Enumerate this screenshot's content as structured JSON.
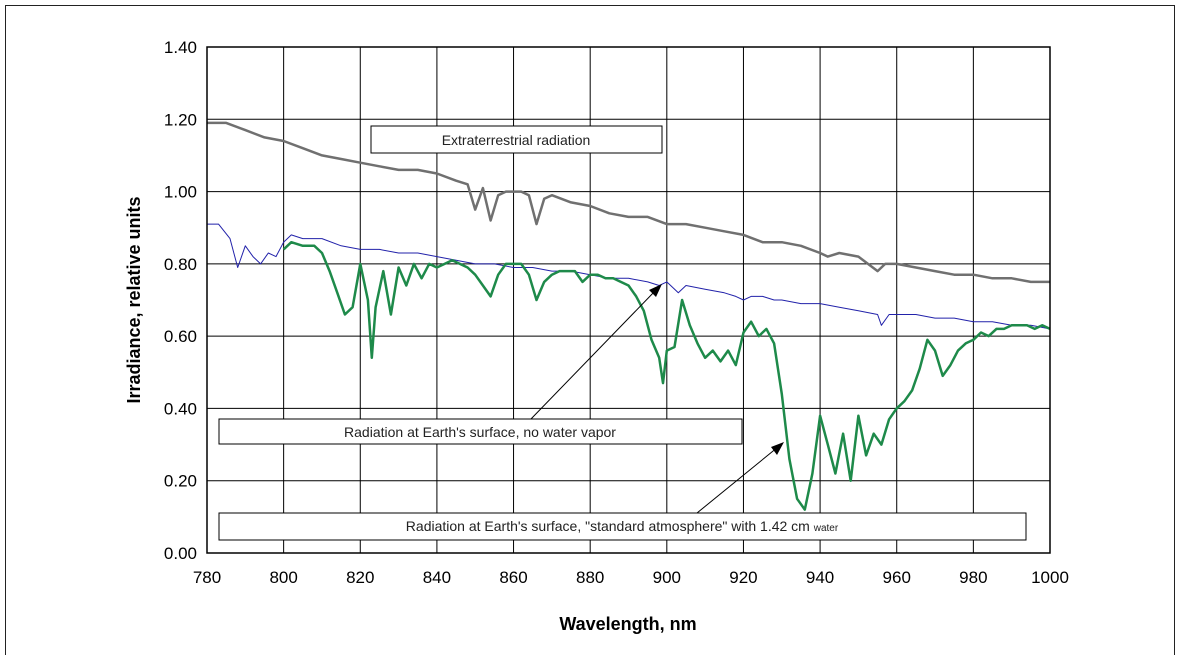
{
  "chart_data": {
    "type": "line",
    "title": "",
    "xlabel": "Wavelength, nm",
    "ylabel": "Irradiance, relative units",
    "xlim": [
      780,
      1000
    ],
    "ylim": [
      0,
      1.4
    ],
    "x_ticks": [
      "780",
      "800",
      "820",
      "840",
      "860",
      "880",
      "900",
      "920",
      "940",
      "960",
      "980",
      "1000"
    ],
    "y_ticks": [
      "0.00",
      "0.20",
      "0.40",
      "0.60",
      "0.80",
      "1.00",
      "1.20",
      "1.40"
    ],
    "grid": true,
    "series": [
      {
        "name": "Extraterrestrial radiation",
        "color": "#707070",
        "points": [
          [
            780,
            1.19
          ],
          [
            785,
            1.19
          ],
          [
            790,
            1.17
          ],
          [
            795,
            1.15
          ],
          [
            800,
            1.14
          ],
          [
            805,
            1.12
          ],
          [
            810,
            1.1
          ],
          [
            815,
            1.09
          ],
          [
            820,
            1.08
          ],
          [
            825,
            1.07
          ],
          [
            830,
            1.06
          ],
          [
            835,
            1.06
          ],
          [
            840,
            1.05
          ],
          [
            845,
            1.03
          ],
          [
            848,
            1.02
          ],
          [
            850,
            0.95
          ],
          [
            852,
            1.01
          ],
          [
            854,
            0.92
          ],
          [
            856,
            0.99
          ],
          [
            858,
            1.0
          ],
          [
            860,
            1.0
          ],
          [
            862,
            1.0
          ],
          [
            864,
            0.99
          ],
          [
            866,
            0.91
          ],
          [
            868,
            0.98
          ],
          [
            870,
            0.99
          ],
          [
            875,
            0.97
          ],
          [
            880,
            0.96
          ],
          [
            885,
            0.94
          ],
          [
            890,
            0.93
          ],
          [
            895,
            0.93
          ],
          [
            900,
            0.91
          ],
          [
            905,
            0.91
          ],
          [
            910,
            0.9
          ],
          [
            915,
            0.89
          ],
          [
            920,
            0.88
          ],
          [
            925,
            0.86
          ],
          [
            930,
            0.86
          ],
          [
            935,
            0.85
          ],
          [
            940,
            0.83
          ],
          [
            942,
            0.82
          ],
          [
            945,
            0.83
          ],
          [
            950,
            0.82
          ],
          [
            955,
            0.78
          ],
          [
            957,
            0.8
          ],
          [
            960,
            0.8
          ],
          [
            965,
            0.79
          ],
          [
            970,
            0.78
          ],
          [
            975,
            0.77
          ],
          [
            980,
            0.77
          ],
          [
            985,
            0.76
          ],
          [
            990,
            0.76
          ],
          [
            995,
            0.75
          ],
          [
            1000,
            0.75
          ]
        ]
      },
      {
        "name": "Radiation at Earth's surface, no water vapor",
        "color": "#2222aa",
        "points": [
          [
            780,
            0.91
          ],
          [
            783,
            0.91
          ],
          [
            786,
            0.87
          ],
          [
            788,
            0.79
          ],
          [
            790,
            0.85
          ],
          [
            792,
            0.82
          ],
          [
            794,
            0.8
          ],
          [
            796,
            0.83
          ],
          [
            798,
            0.82
          ],
          [
            800,
            0.86
          ],
          [
            802,
            0.88
          ],
          [
            805,
            0.87
          ],
          [
            810,
            0.87
          ],
          [
            815,
            0.85
          ],
          [
            820,
            0.84
          ],
          [
            825,
            0.84
          ],
          [
            830,
            0.83
          ],
          [
            835,
            0.83
          ],
          [
            840,
            0.82
          ],
          [
            845,
            0.81
          ],
          [
            850,
            0.8
          ],
          [
            855,
            0.8
          ],
          [
            860,
            0.79
          ],
          [
            865,
            0.79
          ],
          [
            870,
            0.78
          ],
          [
            875,
            0.78
          ],
          [
            880,
            0.77
          ],
          [
            885,
            0.76
          ],
          [
            890,
            0.76
          ],
          [
            895,
            0.75
          ],
          [
            898,
            0.74
          ],
          [
            900,
            0.75
          ],
          [
            903,
            0.72
          ],
          [
            905,
            0.74
          ],
          [
            910,
            0.73
          ],
          [
            915,
            0.72
          ],
          [
            918,
            0.71
          ],
          [
            920,
            0.7
          ],
          [
            922,
            0.71
          ],
          [
            925,
            0.71
          ],
          [
            928,
            0.7
          ],
          [
            930,
            0.7
          ],
          [
            935,
            0.69
          ],
          [
            940,
            0.69
          ],
          [
            945,
            0.68
          ],
          [
            950,
            0.67
          ],
          [
            955,
            0.66
          ],
          [
            956,
            0.63
          ],
          [
            958,
            0.66
          ],
          [
            960,
            0.66
          ],
          [
            965,
            0.66
          ],
          [
            970,
            0.65
          ],
          [
            975,
            0.65
          ],
          [
            980,
            0.64
          ],
          [
            985,
            0.64
          ],
          [
            990,
            0.63
          ],
          [
            995,
            0.63
          ],
          [
            1000,
            0.62
          ]
        ]
      },
      {
        "name": "Radiation at Earth's surface, \"standard atmosphere\" with 1.42 cm water",
        "color": "#1e8a4a",
        "points": [
          [
            800,
            0.84
          ],
          [
            802,
            0.86
          ],
          [
            805,
            0.85
          ],
          [
            808,
            0.85
          ],
          [
            810,
            0.83
          ],
          [
            812,
            0.78
          ],
          [
            814,
            0.72
          ],
          [
            816,
            0.66
          ],
          [
            818,
            0.68
          ],
          [
            820,
            0.8
          ],
          [
            822,
            0.7
          ],
          [
            823,
            0.54
          ],
          [
            824,
            0.68
          ],
          [
            826,
            0.78
          ],
          [
            828,
            0.66
          ],
          [
            830,
            0.79
          ],
          [
            832,
            0.74
          ],
          [
            834,
            0.8
          ],
          [
            836,
            0.76
          ],
          [
            838,
            0.8
          ],
          [
            840,
            0.79
          ],
          [
            842,
            0.8
          ],
          [
            844,
            0.81
          ],
          [
            846,
            0.8
          ],
          [
            848,
            0.79
          ],
          [
            850,
            0.77
          ],
          [
            852,
            0.74
          ],
          [
            854,
            0.71
          ],
          [
            856,
            0.77
          ],
          [
            858,
            0.8
          ],
          [
            860,
            0.8
          ],
          [
            862,
            0.8
          ],
          [
            864,
            0.77
          ],
          [
            866,
            0.7
          ],
          [
            868,
            0.75
          ],
          [
            870,
            0.77
          ],
          [
            872,
            0.78
          ],
          [
            874,
            0.78
          ],
          [
            876,
            0.78
          ],
          [
            878,
            0.75
          ],
          [
            880,
            0.77
          ],
          [
            882,
            0.77
          ],
          [
            884,
            0.76
          ],
          [
            886,
            0.76
          ],
          [
            888,
            0.75
          ],
          [
            890,
            0.74
          ],
          [
            892,
            0.71
          ],
          [
            894,
            0.67
          ],
          [
            896,
            0.59
          ],
          [
            898,
            0.54
          ],
          [
            899,
            0.47
          ],
          [
            900,
            0.56
          ],
          [
            902,
            0.57
          ],
          [
            904,
            0.7
          ],
          [
            906,
            0.63
          ],
          [
            908,
            0.58
          ],
          [
            910,
            0.54
          ],
          [
            912,
            0.56
          ],
          [
            914,
            0.53
          ],
          [
            916,
            0.56
          ],
          [
            918,
            0.52
          ],
          [
            920,
            0.61
          ],
          [
            922,
            0.64
          ],
          [
            924,
            0.6
          ],
          [
            926,
            0.62
          ],
          [
            928,
            0.58
          ],
          [
            930,
            0.44
          ],
          [
            932,
            0.26
          ],
          [
            934,
            0.15
          ],
          [
            936,
            0.12
          ],
          [
            938,
            0.22
          ],
          [
            940,
            0.38
          ],
          [
            942,
            0.3
          ],
          [
            944,
            0.22
          ],
          [
            946,
            0.33
          ],
          [
            948,
            0.2
          ],
          [
            950,
            0.38
          ],
          [
            952,
            0.27
          ],
          [
            954,
            0.33
          ],
          [
            956,
            0.3
          ],
          [
            958,
            0.37
          ],
          [
            960,
            0.4
          ],
          [
            962,
            0.42
          ],
          [
            964,
            0.45
          ],
          [
            966,
            0.51
          ],
          [
            968,
            0.59
          ],
          [
            970,
            0.56
          ],
          [
            972,
            0.49
          ],
          [
            974,
            0.52
          ],
          [
            976,
            0.56
          ],
          [
            978,
            0.58
          ],
          [
            980,
            0.59
          ],
          [
            982,
            0.61
          ],
          [
            984,
            0.6
          ],
          [
            986,
            0.62
          ],
          [
            988,
            0.62
          ],
          [
            990,
            0.63
          ],
          [
            992,
            0.63
          ],
          [
            994,
            0.63
          ],
          [
            996,
            0.62
          ],
          [
            998,
            0.63
          ],
          [
            1000,
            0.62
          ]
        ]
      }
    ],
    "annotations": [
      {
        "text": "Extraterrestrial radiation"
      },
      {
        "text": "Radiation at Earth's surface, no water vapor"
      },
      {
        "text": "Radiation at Earth's surface, \"standard atmosphere\" with 1.42 cm",
        "small": "water"
      }
    ]
  }
}
